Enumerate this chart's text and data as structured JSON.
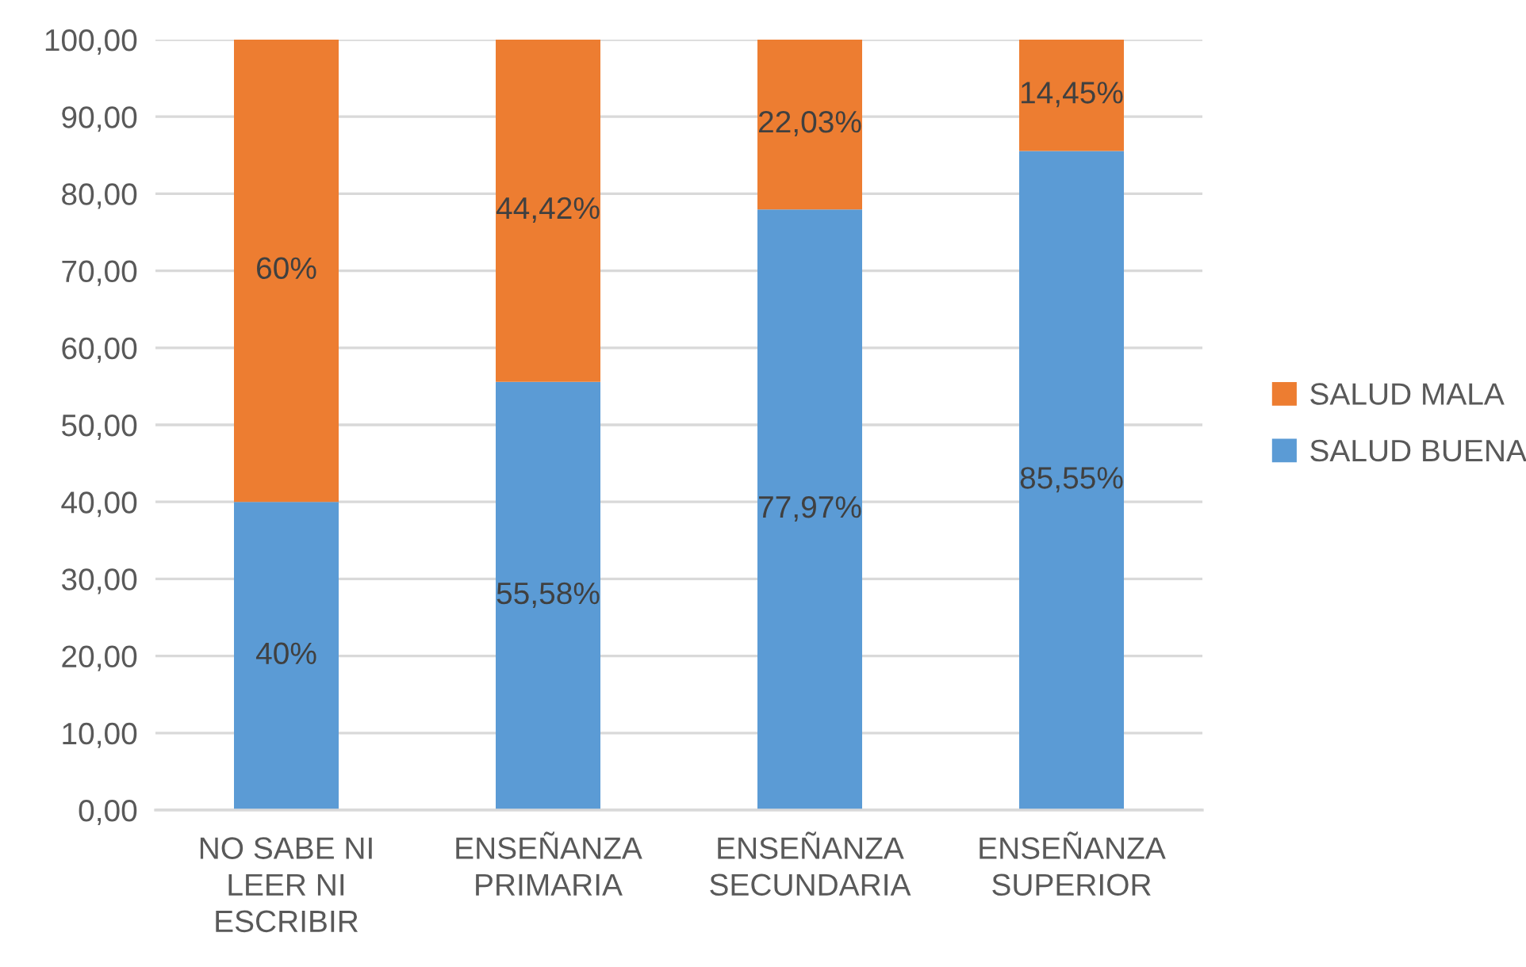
{
  "chart_data": {
    "type": "bar",
    "stacked": true,
    "categories": [
      "NO SABE NI\nLEER NI\nESCRIBIR",
      "ENSEÑANZA\nPRIMARIA",
      "ENSEÑANZA\nSECUNDARIA",
      "ENSEÑANZA\nSUPERIOR"
    ],
    "series": [
      {
        "name": "SALUD BUENA",
        "color": "#5b9bd5",
        "values": [
          40,
          55.58,
          77.97,
          85.55
        ],
        "value_labels": [
          "40%",
          "55,58%",
          "77,97%",
          "85,55%"
        ]
      },
      {
        "name": "SALUD MALA",
        "color": "#ed7d31",
        "values": [
          60,
          44.42,
          22.03,
          14.45
        ],
        "value_labels": [
          "60%",
          "44,42%",
          "22,03%",
          "14,45%"
        ]
      }
    ],
    "ylim": [
      0,
      100
    ],
    "yticks": [
      {
        "value": 0,
        "label": "0,00"
      },
      {
        "value": 10,
        "label": "10,00"
      },
      {
        "value": 20,
        "label": "20,00"
      },
      {
        "value": 30,
        "label": "30,00"
      },
      {
        "value": 40,
        "label": "40,00"
      },
      {
        "value": 50,
        "label": "50,00"
      },
      {
        "value": 60,
        "label": "60,00"
      },
      {
        "value": 70,
        "label": "70,00"
      },
      {
        "value": 80,
        "label": "80,00"
      },
      {
        "value": 90,
        "label": "90,00"
      },
      {
        "value": 100,
        "label": "100,00"
      }
    ],
    "grid": "y",
    "legend": "right"
  }
}
